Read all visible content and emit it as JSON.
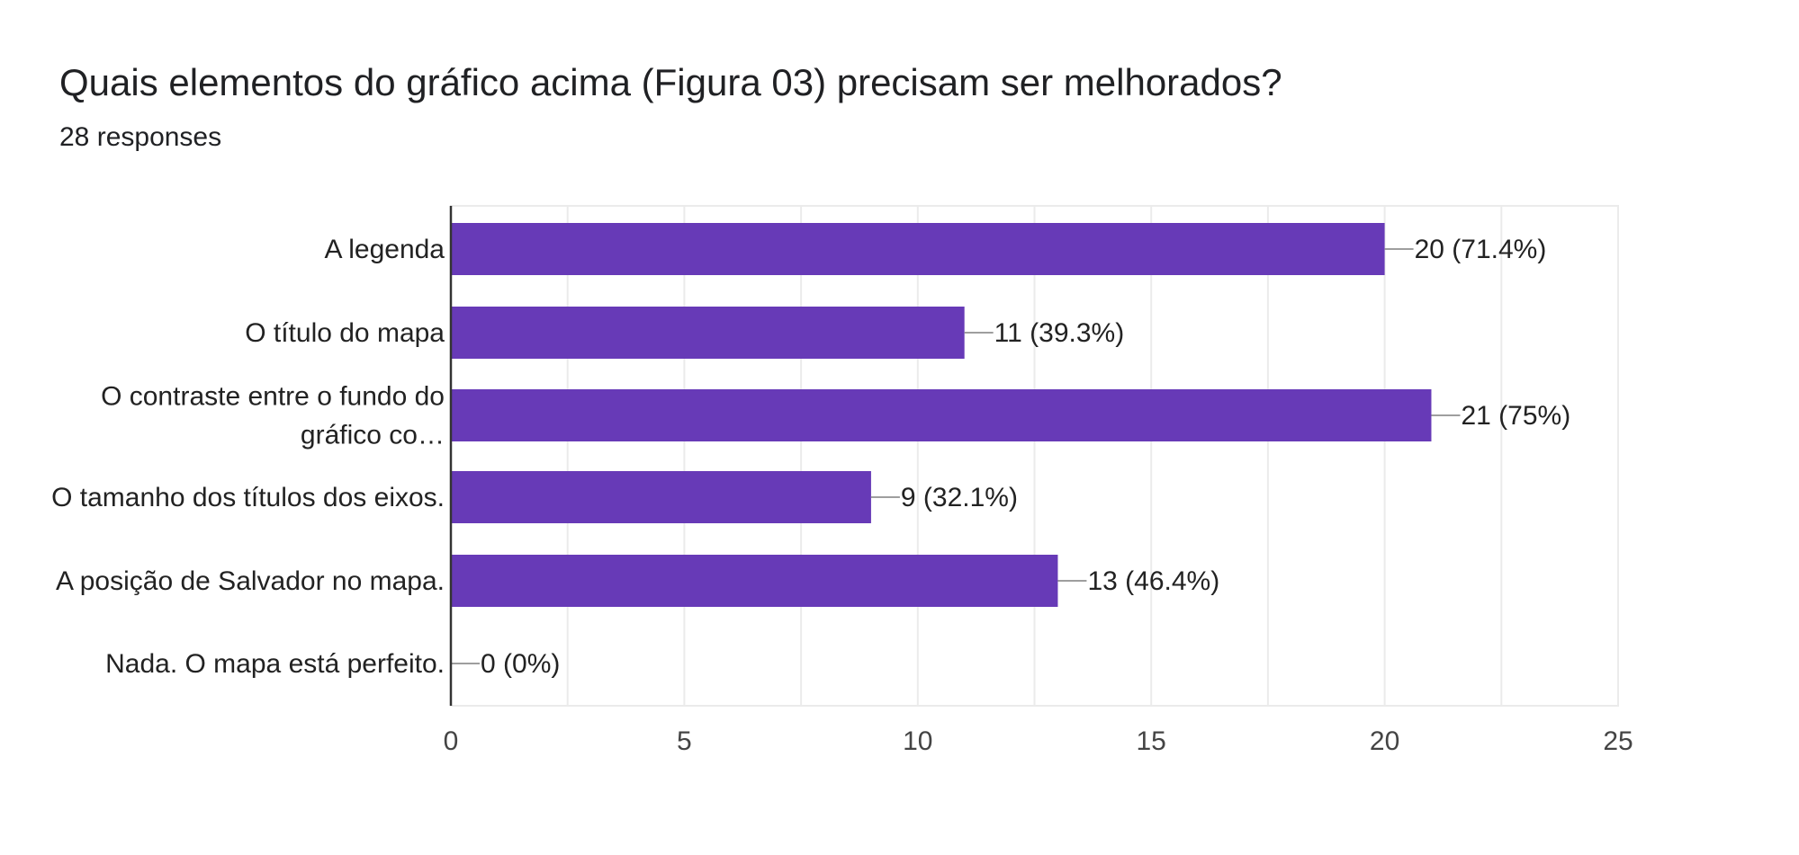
{
  "question": {
    "title": "Quais elementos do gráfico acima (Figura 03) precisam ser melhorados?",
    "response_count": "28 responses"
  },
  "colors": {
    "bar": "#673ab7",
    "grid": "#ebebeb",
    "axis": "#333333",
    "leader": "#9e9e9e",
    "text": "#222222",
    "tick_text": "#444444"
  },
  "chart_data": {
    "type": "bar",
    "orientation": "horizontal",
    "categories": [
      [
        "A legenda"
      ],
      [
        "O título do mapa"
      ],
      [
        "O contraste entre o fundo do",
        "gráfico co…"
      ],
      [
        "O tamanho dos títulos dos eixos."
      ],
      [
        "A posição de Salvador no mapa."
      ],
      [
        "Nada. O mapa está perfeito."
      ]
    ],
    "values": [
      20,
      11,
      21,
      9,
      13,
      0
    ],
    "data_labels": [
      "20 (71.4%)",
      "11 (39.3%)",
      "21 (75%)",
      "9 (32.1%)",
      "13 (46.4%)",
      "0 (0%)"
    ],
    "xlim": [
      0,
      25
    ],
    "xticks": [
      0,
      5,
      10,
      15,
      20,
      25
    ],
    "grid": true,
    "title": "",
    "xlabel": "",
    "ylabel": ""
  }
}
